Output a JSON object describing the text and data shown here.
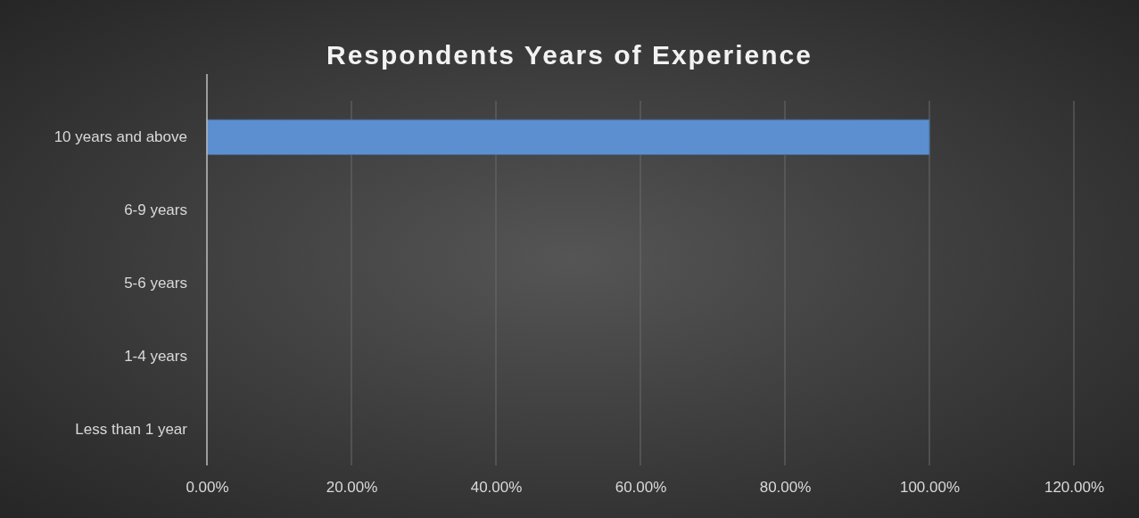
{
  "chart_data": {
    "type": "bar",
    "orientation": "horizontal",
    "title": "Respondents Years of Experience",
    "categories": [
      "10 years and above",
      "6-9 years",
      "5-6 years",
      "1-4 years",
      "Less than 1 year"
    ],
    "values": [
      100,
      0,
      0,
      0,
      0
    ],
    "color": "#5b8fd0",
    "xlim": [
      0,
      120
    ],
    "xticks": [
      {
        "value": 0,
        "label": "0.00%"
      },
      {
        "value": 20,
        "label": "20.00%"
      },
      {
        "value": 40,
        "label": "40.00%"
      },
      {
        "value": 60,
        "label": "60.00%"
      },
      {
        "value": 80,
        "label": "80.00%"
      },
      {
        "value": 100,
        "label": "100.00%"
      },
      {
        "value": 120,
        "label": "120.00%"
      }
    ],
    "grid": "x"
  }
}
